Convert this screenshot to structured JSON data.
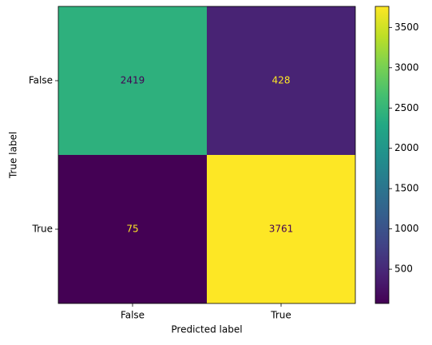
{
  "chart_data": {
    "type": "heatmap",
    "xlabel": "Predicted label",
    "ylabel": "True label",
    "x_categories": [
      "False",
      "True"
    ],
    "y_categories": [
      "False",
      "True"
    ],
    "values": [
      [
        2419,
        428
      ],
      [
        75,
        3761
      ]
    ],
    "colormap": "viridis",
    "clim": [
      75,
      3761
    ],
    "cticks": [
      500,
      1000,
      1500,
      2000,
      2500,
      3000,
      3500
    ]
  }
}
